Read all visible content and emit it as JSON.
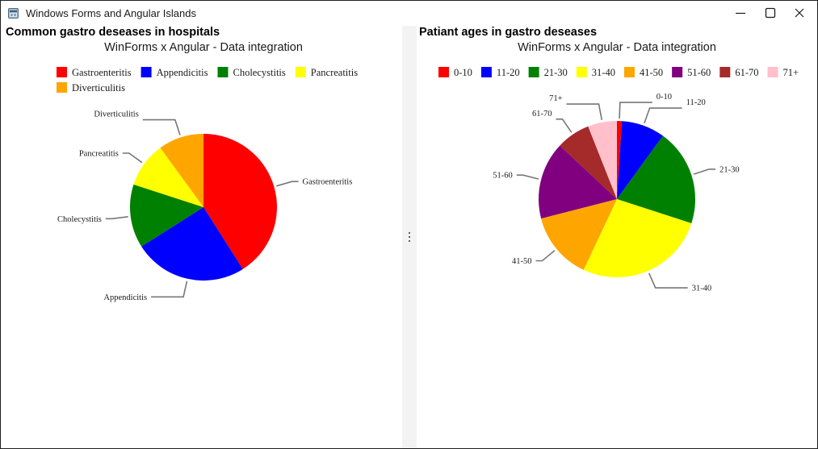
{
  "window": {
    "title": "Windows Forms and Angular Islands",
    "icons": {
      "app": "app-window-icon",
      "minimize": "minimize-icon",
      "maximize": "maximize-icon",
      "close": "close-icon"
    }
  },
  "left_pane": {
    "heading": "Common gastro deseases in hospitals"
  },
  "right_pane": {
    "heading": "Patiant ages in gastro deseases"
  },
  "chart_data": [
    {
      "type": "pie",
      "title": "WinForms x Angular - Data integration",
      "legend_position": "top",
      "slices": [
        {
          "label": "Gastroenteritis",
          "value": 41,
          "color": "#ff0000"
        },
        {
          "label": "Appendicitis",
          "value": 25,
          "color": "#0000ff"
        },
        {
          "label": "Cholecystitis",
          "value": 14,
          "color": "#008000"
        },
        {
          "label": "Pancreatitis",
          "value": 10,
          "color": "#ffff00"
        },
        {
          "label": "Diverticulitis",
          "value": 10,
          "color": "#ffa500"
        }
      ]
    },
    {
      "type": "pie",
      "title": "WinForms x Angular - Data integration",
      "legend_position": "top",
      "slices": [
        {
          "label": "0-10",
          "value": 1,
          "color": "#ff0000"
        },
        {
          "label": "11-20",
          "value": 9,
          "color": "#0000ff"
        },
        {
          "label": "21-30",
          "value": 20,
          "color": "#008000"
        },
        {
          "label": "31-40",
          "value": 27,
          "color": "#ffff00"
        },
        {
          "label": "41-50",
          "value": 14,
          "color": "#ffa500"
        },
        {
          "label": "51-60",
          "value": 16,
          "color": "#800080"
        },
        {
          "label": "61-70",
          "value": 7,
          "color": "#a52a2a"
        },
        {
          "label": "71+",
          "value": 6,
          "color": "#ffc0cb"
        }
      ]
    }
  ]
}
